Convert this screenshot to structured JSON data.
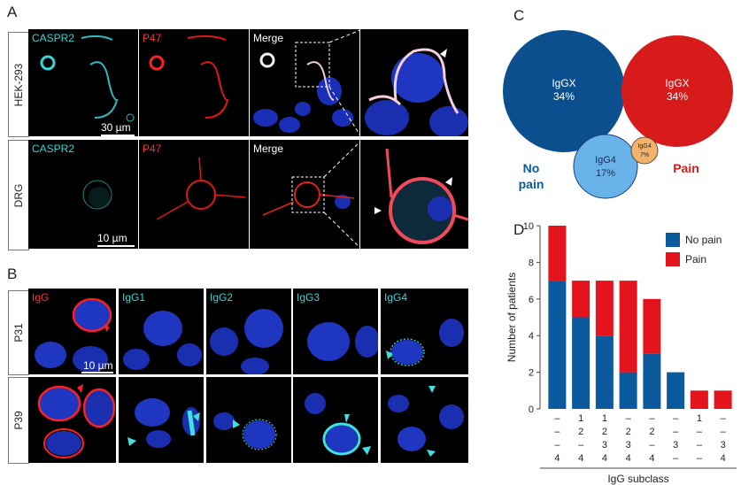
{
  "panels": {
    "A": {
      "letter": "A",
      "rows": [
        "HEK-293",
        "DRG"
      ],
      "channels": [
        "CASPR2",
        "P47",
        "Merge"
      ],
      "scale_bars": [
        "30 µm",
        "10 µm"
      ]
    },
    "B": {
      "letter": "B",
      "rows": [
        "P31",
        "P39"
      ],
      "columns": [
        "IgG",
        "IgG1",
        "IgG2",
        "IgG3",
        "IgG4"
      ],
      "scale_bar": "10 µm"
    },
    "C": {
      "letter": "C",
      "bubbles": [
        {
          "label": "IgGX",
          "pct": "34%",
          "value": 34,
          "group": "No pain",
          "color": "#0b4f8f"
        },
        {
          "label": "IgGX",
          "pct": "34%",
          "value": 34,
          "group": "Pain",
          "color": "#d71a1a"
        },
        {
          "label": "IgG4",
          "pct": "17%",
          "value": 17,
          "group": "No pain",
          "color": "#6ab3ea"
        },
        {
          "label": "IgG4",
          "pct": "7%",
          "value": 7,
          "group": "Pain",
          "color": "#f5b26b"
        }
      ],
      "group_labels": {
        "no_pain": "No\npain",
        "pain": "Pain"
      }
    }
  },
  "chart_data": {
    "type": "bar",
    "stacked": true,
    "letter": "D",
    "ylabel": "Number of patients",
    "xlabel": "IgG subclass",
    "ylim": [
      0,
      10
    ],
    "yticks": [
      0,
      2,
      4,
      6,
      8,
      10
    ],
    "categories": [
      [
        "–",
        "–",
        "–",
        "4"
      ],
      [
        "1",
        "2",
        "–",
        "4"
      ],
      [
        "1",
        "2",
        "3",
        "4"
      ],
      [
        "–",
        "2",
        "3",
        "4"
      ],
      [
        "–",
        "2",
        "–",
        "4"
      ],
      [
        "–",
        "–",
        "3",
        "–"
      ],
      [
        "1",
        "–",
        "–",
        "–"
      ],
      [
        "–",
        "–",
        "3",
        "4"
      ]
    ],
    "series": [
      {
        "name": "No pain",
        "color": "#0b5a9e",
        "values": [
          7,
          5,
          4,
          2,
          3,
          2,
          0,
          0
        ]
      },
      {
        "name": "Pain",
        "color": "#e3141b",
        "values": [
          3,
          2,
          3,
          5,
          3,
          0,
          1,
          1
        ]
      }
    ],
    "legend_position": "top-right",
    "grid": false
  }
}
